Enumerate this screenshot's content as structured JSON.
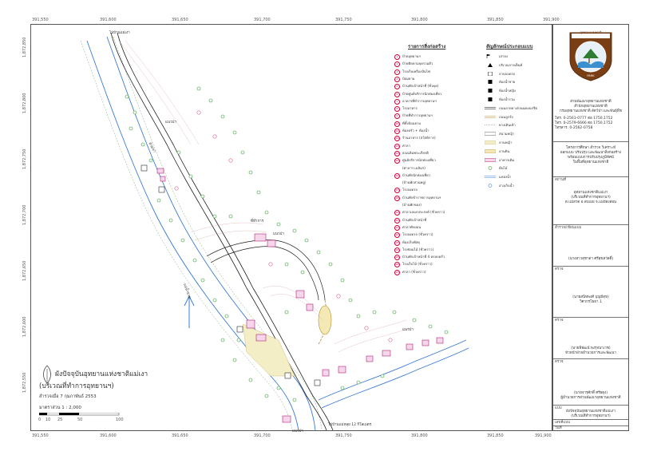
{
  "coords": {
    "top": [
      "391,550",
      "391,600",
      "391,650",
      "391,700",
      "391,750",
      "391,800",
      "391,850",
      "391,900"
    ],
    "bottom": [
      "391,550",
      "391,600",
      "391,650",
      "391,700",
      "391,750",
      "391,800",
      "391,850",
      "391,900"
    ],
    "left": [
      "1,872,850",
      "1,872,800",
      "1,872,750",
      "1,872,700",
      "1,872,650",
      "1,872,600",
      "1,872,550"
    ]
  },
  "map": {
    "title": "ผังปัจจุบันอุทยานแห่งชาติแม่เงา",
    "subtitle": "(บริเวณที่ทำการอุทยานฯ)",
    "date": "สำรวจเมื่อ 7 กุมภาพันธ์ 2553",
    "scale": "มาตราส่วน    1 : 2,000",
    "scale_ticks": [
      "0",
      "10",
      "25",
      "50",
      "100"
    ],
    "labels": {
      "road_to_maengao": "ไปบ้านแม่เงา",
      "road_to_kilomet": "ไปบ้านแม่หลุย 12 กิโลเมตร",
      "river": "แม่น้ำยวม",
      "stream": "ห้วยนา",
      "hill_1": "แนวป่า",
      "hill_2": "แนวป่า",
      "hill_3": "แนวป่า",
      "hill_4": "แนวป่า",
      "bld_label": "ที่ทำการ"
    }
  },
  "buildings_title": "รายการสิ่งก่อสร้าง",
  "buildings": [
    {
      "n": "1",
      "t": "ป้ายอุทยานฯ"
    },
    {
      "n": "2",
      "t": "ป้ายติดตามจุดรวมตัว"
    },
    {
      "n": "3",
      "t": "โรงเก็บเครื่องปั่นไฟ"
    },
    {
      "n": "4",
      "t": "ป้อมยาม"
    },
    {
      "n": "5",
      "t": "บ้านพักเจ้าหน้าที่ (ชั่วคุด)"
    },
    {
      "n": "6",
      "t": "ป้ายศูนย์บริการนักท่องเที่ยว"
    },
    {
      "n": "7",
      "t": "อาคารที่ทำการอุทยานฯ"
    },
    {
      "n": "8",
      "t": "โรงอาหาร"
    },
    {
      "n": "9",
      "t": "ป้ายที่ทำการอุทยานฯ"
    },
    {
      "n": "10",
      "t": "ที่ตั้งป้อมยาม"
    },
    {
      "n": "11",
      "t": "ห้องครัว + ห้องน้ำ"
    },
    {
      "n": "12",
      "t": "ร้านอาหาร (สวัสดิการ)"
    },
    {
      "n": "13",
      "t": "ศาลา"
    },
    {
      "n": "14",
      "t": "ธงเฉลิมพระเกียรติ"
    },
    {
      "n": "15",
      "t": "ศูนย์บริการนักท่องเที่ยว"
    },
    {
      "n": "",
      "t": "(ศาลาฯ เฉลิมฯ)"
    },
    {
      "n": "16",
      "t": "บ้านพักนักท่องเที่ยว"
    },
    {
      "n": "",
      "t": "(บ้านพักสวนพลู)"
    },
    {
      "n": "17",
      "t": "โรงจอดรถ"
    },
    {
      "n": "18",
      "t": "บ้านพักข้าราชการอุทยานฯ"
    },
    {
      "n": "",
      "t": "(บ้านพักของ)"
    },
    {
      "n": "19",
      "t": "ศาลาเอนกประสงค์ (ชั่วคราว)"
    },
    {
      "n": "20",
      "t": "บ้านพักเจ้าหน้าที่"
    },
    {
      "n": "21",
      "t": "ศาลาพักผ่อน"
    },
    {
      "n": "22",
      "t": "โรงจอดรถ (ชั่วคราว)"
    },
    {
      "n": "23",
      "t": "ห้องเก็บพัสดุ"
    },
    {
      "n": "24",
      "t": "โรงซ่อมไม้ (ชั่วคราว)"
    },
    {
      "n": "25",
      "t": "บ้านพักเจ้าหน้าที่ 4 ครอบครัว"
    },
    {
      "n": "26",
      "t": "โรงเก็บไม้ (ชั่วคราว)"
    },
    {
      "n": "27",
      "t": "ศาลา (ชั่วคราว)"
    }
  ],
  "symbols_title": "สัญลักษณ์ประกอบแบบ",
  "symbols": [
    {
      "icon": "flag-icon",
      "t": "เสาธง"
    },
    {
      "icon": "info-icon",
      "t": "บริเวณกางเต็นท์"
    },
    {
      "icon": "parking-icon",
      "t": "ลานจอดรถ"
    },
    {
      "icon": "toilet-male-icon",
      "t": "ห้องน้ำชาย"
    },
    {
      "icon": "toilet-female-icon",
      "t": "ห้องน้ำหญิง"
    },
    {
      "icon": "restroom-icon",
      "t": "ห้องน้ำรวม"
    },
    {
      "icon": "road-paved-icon",
      "t": "ถนนลาดยาง/ถนนคอนกรีต"
    },
    {
      "icon": "road-dirt-icon",
      "t": "ถนนลูกรัง"
    },
    {
      "icon": "stream-icon",
      "t": "ทางเดินเท้า"
    },
    {
      "icon": "field-icon",
      "t": "สนามหญ้า"
    },
    {
      "icon": "yard-icon",
      "t": "ลานหญ้า"
    },
    {
      "icon": "court-icon",
      "t": "ลานดิน"
    },
    {
      "icon": "building-icon",
      "t": "อาคารเดิม"
    },
    {
      "icon": "tree-icon",
      "t": "ต้นไม้"
    },
    {
      "icon": "water-icon",
      "t": "แหล่งน้ำ"
    },
    {
      "icon": "pond-icon",
      "t": "อ่างเก็บน้ำ"
    }
  ],
  "title_block": {
    "logo_top": "อุทยานแห่งชาติ",
    "logo_left": "NATIONAL",
    "logo_right": "THAILAND",
    "logo_bottom": "PARK",
    "org_lines": [
      "ส่วนพัฒนาอุทยานแห่งชาติ",
      "สำนักอุทยานแห่งชาติ",
      "กรมอุทยานแห่งชาติ สัตว์ป่า และพันธุ์พืช"
    ],
    "contact_lines": [
      "โทร. 0-2561-0777 ต่อ 1750,1752",
      "โทร. 0-2579-6666 ต่อ 1750,1752",
      "โทรสาร. 0-2562-0758"
    ],
    "project_lines": [
      "โครงการศึกษา สำรวจ วิเคราะห์",
      "ออกแบบ ปรับปรุง และพัฒนาสิ่งก่อสร้าง",
      "พร้อมแบบการปรับปรุงภูมิทัศน์",
      "ในพื้นที่อุทยานแห่งชาติ"
    ],
    "location_head": "สถานที่",
    "location_lines": [
      "อุทยานแห่งชาติแม่เงา",
      "(บริเวณที่ทำการอุทยานฯ)",
      "ต.แม่สวด อ.สบเมย จ.แม่ฮ่องสอน"
    ],
    "survey_head": "สำรวจ/เขียนแบบ",
    "survey_name": "(นางสาวสุชาดา ศรีสุขสวัสดิ์)",
    "check1_head": "ตรวจ",
    "check1_name": "(นายสนิทพงศ์ บุญมีสุข)",
    "check1_title": "วิศวกรโยธา 1",
    "check2_head": "ตรวจ",
    "check2_name": "(นายพิพัฒน์ พงรุจนาเวช)",
    "check2_title": "หัวหน้าฝ่ายอำนวยการและพัฒนา",
    "approve_head": "ตรวจ",
    "approve_name": "(นายจารุศักดิ์ ศรีผดุง)",
    "approve_title": "ผู้อำนวยการส่วนพัฒนาอุทยานแห่งชาติ",
    "drawing_head": "แบบ",
    "drawing_lines": [
      "ผังปัจจุบันอุทยานแห่งชาติแม่เงา",
      "(บริเวณที่ทำการอุทยานฯ)"
    ],
    "sheet_no_label": "เลขที่แบบ",
    "date_label": "วันที่"
  }
}
